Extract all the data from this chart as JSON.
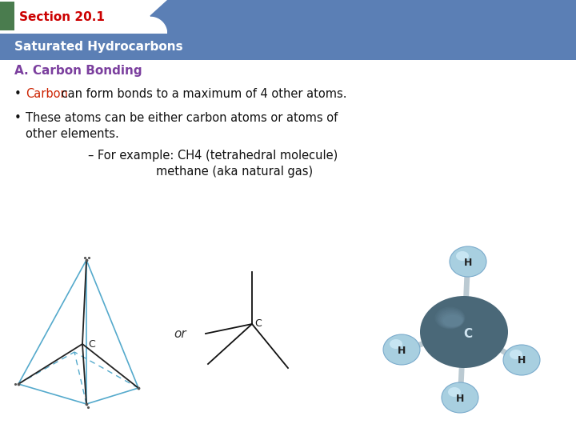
{
  "bg_color": "#ffffff",
  "header_tab_text": "Section 20.1",
  "header_tab_text_color": "#cc0000",
  "header_tab_green_color": "#4a7c4e",
  "header_bar_color": "#5b7fb5",
  "header_bar_text": "Saturated Hydrocarbons",
  "header_bar_text_color": "#ffffff",
  "section_title": "A. Carbon Bonding",
  "section_title_color": "#7b3f9e",
  "bullet1_colored": "Carbon",
  "bullet1_colored_color": "#cc2200",
  "bullet1_rest": " can form bonds to a maximum of 4 other atoms.",
  "text_color": "#111111",
  "font_size_header": 11,
  "font_size_bar": 11,
  "font_size_section": 11,
  "font_size_body": 10.5
}
